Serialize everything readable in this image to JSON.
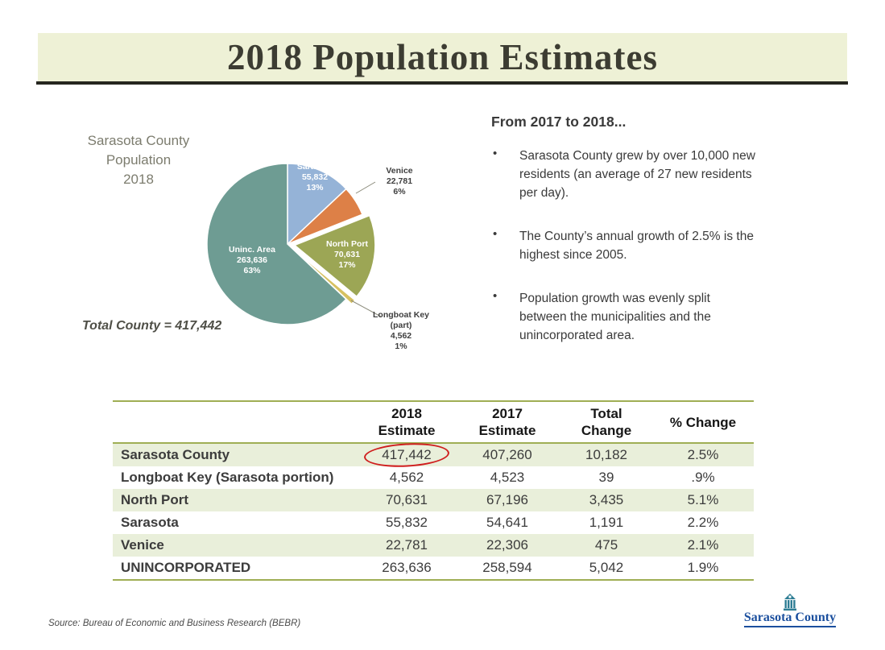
{
  "slide": {
    "title": "2018 Population Estimates",
    "source_note": "Source: Bureau of Economic and Business Research (BEBR)",
    "logo_text": "Sarasota County"
  },
  "theme": {
    "header_bg": "#eef1d6",
    "header_rule": "#26261f",
    "title_color": "#3c3c32",
    "text_color": "#3d3d3d",
    "table_stripe": "#e9efda",
    "table_border": "#9fae54",
    "red_annotation": "#cf1d1d",
    "logo_blue": "#1b4f9e",
    "logo_teal": "#2e7d94"
  },
  "chart_data": {
    "type": "pie",
    "title": "Sarasota County Population 2018",
    "title_lines": [
      "Sarasota County",
      "Population",
      "2018"
    ],
    "total_label": "Total County = 417,442",
    "total_value": 417442,
    "legend_position": "none",
    "slices": [
      {
        "name": "Sarasota",
        "value": 55832,
        "pct": 13,
        "color": "#95b3d7",
        "exploded": false,
        "lines": [
          "Sarasota",
          "55,832",
          "13%"
        ]
      },
      {
        "name": "Venice",
        "value": 22781,
        "pct": 6,
        "color": "#dd8047",
        "exploded": false,
        "lines": [
          "Venice",
          "22,781",
          "6%"
        ]
      },
      {
        "name": "North Port",
        "value": 70631,
        "pct": 17,
        "color": "#9ca655",
        "exploded": true,
        "lines": [
          "North Port",
          "70,631",
          "17%"
        ]
      },
      {
        "name": "Longboat Key (part)",
        "value": 4562,
        "pct": 1,
        "color": "#d6c161",
        "exploded": true,
        "lines": [
          "Longboat Key",
          "(part)",
          "4,562",
          "1%"
        ]
      },
      {
        "name": "Uninc. Area",
        "value": 263636,
        "pct": 63,
        "color": "#6e9c93",
        "exploded": false,
        "lines": [
          "Uninc. Area",
          "263,636",
          "63%"
        ]
      }
    ]
  },
  "highlights": {
    "heading": "From 2017 to 2018...",
    "bullets": [
      "Sarasota County grew by over 10,000 new residents (an average of 27 new residents per day).",
      "The County’s annual growth of 2.5% is the highest since 2005.",
      "Population growth was evenly split between the municipalities and the unincorporated area."
    ]
  },
  "table": {
    "columns": [
      [
        ""
      ],
      [
        "2018",
        "Estimate"
      ],
      [
        "2017",
        "Estimate"
      ],
      [
        "Total",
        "Change"
      ],
      [
        "% Change"
      ]
    ],
    "rows": [
      {
        "name": "Sarasota County",
        "est_2018": "417,442",
        "est_2017": "407,260",
        "total_change": "10,182",
        "pct_change": "2.5%",
        "circled": true
      },
      {
        "name": "Longboat Key (Sarasota portion)",
        "est_2018": "4,562",
        "est_2017": "4,523",
        "total_change": "39",
        "pct_change": ".9%",
        "circled": false
      },
      {
        "name": "North Port",
        "est_2018": "70,631",
        "est_2017": "67,196",
        "total_change": "3,435",
        "pct_change": "5.1%",
        "circled": false
      },
      {
        "name": "Sarasota",
        "est_2018": "55,832",
        "est_2017": "54,641",
        "total_change": "1,191",
        "pct_change": "2.2%",
        "circled": false
      },
      {
        "name": "Venice",
        "est_2018": "22,781",
        "est_2017": "22,306",
        "total_change": "475",
        "pct_change": "2.1%",
        "circled": false
      },
      {
        "name": "UNINCORPORATED",
        "est_2018": "263,636",
        "est_2017": "258,594",
        "total_change": "5,042",
        "pct_change": "1.9%",
        "circled": false
      }
    ]
  }
}
